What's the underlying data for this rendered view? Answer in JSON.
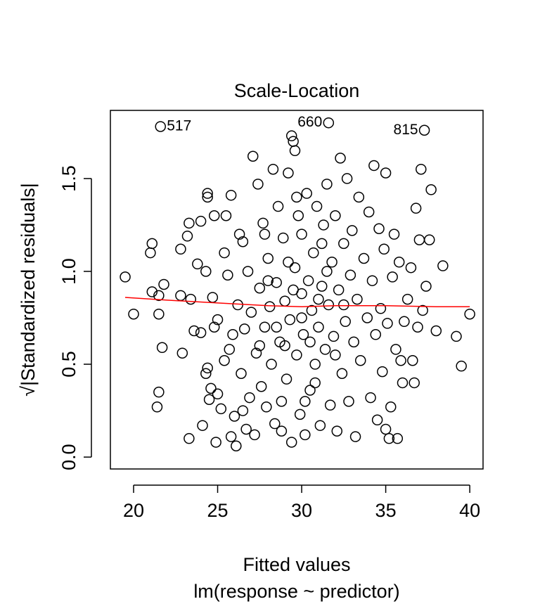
{
  "chart_data": {
    "type": "scatter",
    "title": "Scale-Location",
    "x_label": "Fitted values",
    "x_sublabel": "lm(response ~ predictor)",
    "y_label": "√|Standardized residuals|",
    "xlim": [
      18.62,
      40.79
    ],
    "ylim": [
      -0.064,
      1.867
    ],
    "xticks": [
      20,
      25,
      30,
      35,
      40
    ],
    "yticks": [
      {
        "value": 0,
        "label": "0.0"
      },
      0.5,
      {
        "value": 1,
        "label": "1.0"
      },
      1.5
    ],
    "series": [
      {
        "color": "#000000",
        "x": [
          19.5,
          20,
          21,
          21.1,
          21.1,
          21.4,
          21.5,
          21.5,
          21.7,
          21.8,
          21.6,
          21.5,
          22.8,
          22.8,
          22.9,
          23.2,
          23.3,
          23.3,
          23.4,
          23.6,
          23.8,
          24,
          24,
          24.1,
          24.3,
          24.3,
          24.4,
          24.4,
          24.4,
          24.5,
          24.6,
          24.7,
          24.8,
          24.8,
          24.9,
          25,
          25,
          25.2,
          25.4,
          25.4,
          25.5,
          25.6,
          25.7,
          25.8,
          25.8,
          25.9,
          26,
          26.1,
          26.2,
          26.3,
          26.4,
          26.5,
          26.5,
          26.6,
          26.7,
          26.8,
          26.9,
          27,
          27.1,
          27.2,
          27.3,
          27.4,
          27.5,
          27.6,
          27.7,
          27.8,
          27.9,
          28,
          28.1,
          28.2,
          28.3,
          28.4,
          28.5,
          28.6,
          28.7,
          28.8,
          28.9,
          29,
          29.1,
          29.2,
          29.3,
          29.4,
          29.4,
          29.5,
          29.6,
          29.6,
          29.7,
          29.8,
          29.9,
          30,
          30,
          30.1,
          30.2,
          30.3,
          30.4,
          30.5,
          30.6,
          30.7,
          30.8,
          30.9,
          31,
          31.1,
          31.2,
          31.3,
          31.4,
          31.5,
          31.6,
          31.6,
          31.7,
          31.8,
          31.9,
          32,
          32.1,
          32.2,
          32.3,
          32.4,
          32.5,
          32.6,
          32.7,
          32.8,
          32.9,
          33,
          33.1,
          33.2,
          33.3,
          33.4,
          33.5,
          33.7,
          33.9,
          34,
          34.1,
          34.2,
          34.3,
          34.4,
          34.5,
          34.6,
          34.7,
          34.8,
          34.9,
          35,
          35,
          35.1,
          35.2,
          35.3,
          35.4,
          35.5,
          35.6,
          35.7,
          35.8,
          35.9,
          36,
          36.1,
          36.3,
          36.5,
          36.6,
          36.7,
          36.8,
          36.9,
          37,
          37.1,
          37.2,
          37.3,
          37.4,
          37.6,
          37.7,
          38,
          38.4,
          39.2,
          39.5,
          40,
          28.5,
          29,
          29.5,
          30,
          30.5,
          31,
          28,
          32,
          29.2,
          30.8,
          27.5,
          31.5,
          28.8,
          30.2,
          32.5,
          27.8,
          29.7,
          31.2
        ],
        "values": [
          0.97,
          0.77,
          1.1,
          1.15,
          0.89,
          0.27,
          0.35,
          0.77,
          0.59,
          0.93,
          1.78,
          0.87,
          0.87,
          1.12,
          0.56,
          1.19,
          0.1,
          1.26,
          0.85,
          0.68,
          1.04,
          0.67,
          1.27,
          0.17,
          0.45,
          1.0,
          1.4,
          1.42,
          0.48,
          0.31,
          0.37,
          0.86,
          0.7,
          1.3,
          0.08,
          0.34,
          0.74,
          0.26,
          1.1,
          0.52,
          1.3,
          0.98,
          0.58,
          1.41,
          0.11,
          0.66,
          0.22,
          0.06,
          0.82,
          1.2,
          0.45,
          1.16,
          0.25,
          0.69,
          0.15,
          1.0,
          0.32,
          0.78,
          1.62,
          0.12,
          0.56,
          1.47,
          0.91,
          0.38,
          1.26,
          0.7,
          0.27,
          1.07,
          0.81,
          0.5,
          1.55,
          0.18,
          0.94,
          1.35,
          0.62,
          0.14,
          1.18,
          0.84,
          0.42,
          1.53,
          0.74,
          0.08,
          1.73,
          1.7,
          1.65,
          1.02,
          0.55,
          1.3,
          0.23,
          0.88,
          1.2,
          0.66,
          0.12,
          1.42,
          0.95,
          0.36,
          0.79,
          1.1,
          0.5,
          1.35,
          0.7,
          0.17,
          0.92,
          1.25,
          0.58,
          1.47,
          1.8,
          0.82,
          0.28,
          1.05,
          0.65,
          1.3,
          0.14,
          0.9,
          1.61,
          0.45,
          1.15,
          0.73,
          1.5,
          0.3,
          0.98,
          1.22,
          0.62,
          0.11,
          0.85,
          1.4,
          0.52,
          1.07,
          0.75,
          1.32,
          0.32,
          0.95,
          1.57,
          0.66,
          0.2,
          1.23,
          0.8,
          0.46,
          1.12,
          0.15,
          1.53,
          0.72,
          0.1,
          0.27,
          0.97,
          1.2,
          0.58,
          0.1,
          1.05,
          0.52,
          0.4,
          0.73,
          0.85,
          1.02,
          0.52,
          0.4,
          1.34,
          0.7,
          1.17,
          1.55,
          0.79,
          1.76,
          0.92,
          1.17,
          1.44,
          0.68,
          1.03,
          0.65,
          0.49,
          0.77,
          0.7,
          0.6,
          0.9,
          0.75,
          0.62,
          0.85,
          0.95,
          0.55,
          1.05,
          0.4,
          0.6,
          1.0,
          0.3,
          0.3,
          0.82,
          1.2,
          1.4,
          1.15
        ]
      }
    ],
    "smooth": {
      "color": "#ff0000",
      "x": [
        19.5,
        22,
        25,
        28,
        30,
        32,
        35,
        38,
        40
      ],
      "values": [
        0.86,
        0.845,
        0.83,
        0.815,
        0.81,
        0.815,
        0.815,
        0.81,
        0.81
      ]
    },
    "annotations": [
      {
        "text": "517",
        "x": 21.6,
        "y": 1.78,
        "side": "right"
      },
      {
        "text": "660",
        "x": 31.6,
        "y": 1.8,
        "side": "left"
      },
      {
        "text": "815",
        "x": 37.3,
        "y": 1.76,
        "side": "left"
      }
    ]
  }
}
